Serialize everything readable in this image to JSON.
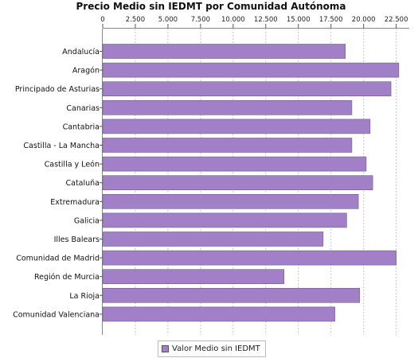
{
  "chart_data": {
    "type": "bar",
    "orientation": "horizontal",
    "title": "Precio Medio sin IEDMT por Comunidad Autónoma",
    "categories": [
      "Andalucía",
      "Aragón",
      "Principado de Asturias",
      "Canarias",
      "Cantabria",
      "Castilla - La Mancha",
      "Castilla y León",
      "Cataluña",
      "Extremadura",
      "Galicia",
      "Illes Balears",
      "Comunidad de Madrid",
      "Región de Murcia",
      "La Rioja",
      "Comunidad Valenciana"
    ],
    "series": [
      {
        "name": "Valor Medio sin IEDMT",
        "color": "#a180c8",
        "values": [
          18600,
          22700,
          22100,
          19100,
          20500,
          19100,
          20200,
          20700,
          19600,
          18700,
          16900,
          22500,
          13900,
          19700,
          17800
        ]
      }
    ],
    "xlim": [
      0,
      23500
    ],
    "xticks": [
      0,
      2500,
      5000,
      7500,
      10000,
      12500,
      15000,
      17500,
      20000,
      22500
    ],
    "xtick_labels": [
      "0",
      "2.500",
      "5.000",
      "7.500",
      "10.000",
      "12.500",
      "15.000",
      "17.500",
      "20.000",
      "22.500"
    ],
    "axis_position": "top",
    "grid": true,
    "legend_position": "bottom"
  }
}
